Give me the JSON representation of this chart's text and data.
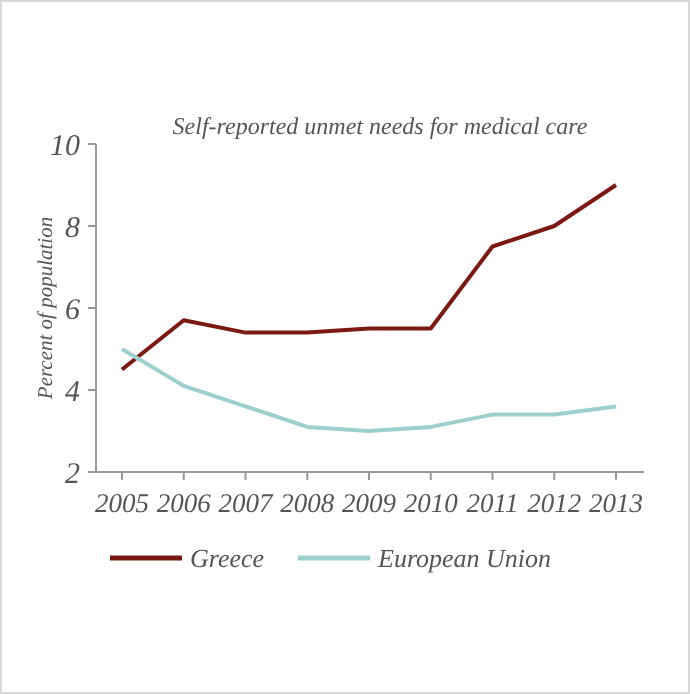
{
  "chart_data": {
    "type": "line",
    "title": "Self-reported unmet needs for medical care",
    "ylabel": "Percent of population",
    "categories": [
      "2005",
      "2006",
      "2007",
      "2008",
      "2009",
      "2010",
      "2011",
      "2012",
      "2013"
    ],
    "series": [
      {
        "name": "Greece",
        "color": "#7b1a12",
        "values": [
          4.5,
          5.7,
          5.4,
          5.4,
          5.5,
          5.5,
          7.5,
          8,
          9
        ]
      },
      {
        "name": "European Union",
        "color": "#9ecfcf",
        "values": [
          5,
          4.1,
          3.6,
          3.1,
          3.0,
          3.1,
          3.4,
          3.4,
          3.6
        ]
      }
    ],
    "ylim": [
      2,
      10
    ],
    "yticks": [
      2,
      4,
      6,
      8,
      10
    ],
    "grid": false,
    "legend": "bottom",
    "marker": "none",
    "line_style": "solid"
  }
}
